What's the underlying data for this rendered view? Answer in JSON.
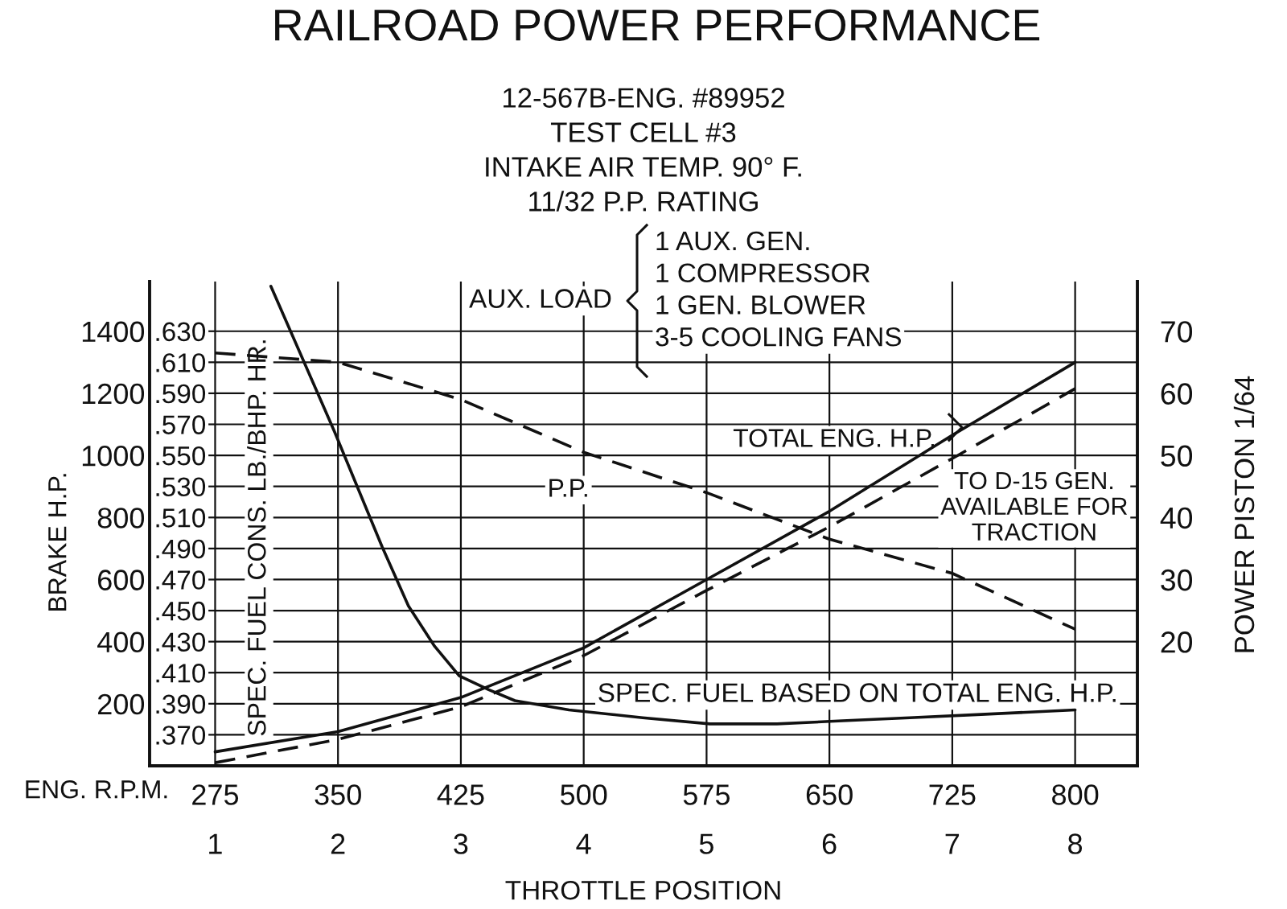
{
  "chart_data": {
    "type": "line",
    "title": "RAILROAD POWER PERFORMANCE",
    "subtitle": "12-567B-ENG. #89952\nTEST CELL #3\nINTAKE AIR TEMP. 90° F.\n11/32 P.P. RATING",
    "xlabel": "ENG. R.P.M.",
    "x2label": "THROTTLE POSITION",
    "ylabel": "BRAKE H.P.",
    "y2label": "SPEC. FUEL CONS. LB./BHP. HR.",
    "y3label": "POWER PISTON 1/64",
    "x": [
      275,
      350,
      425,
      500,
      575,
      650,
      725,
      800
    ],
    "xlim": [
      235,
      838
    ],
    "xticks": [
      275,
      350,
      425,
      500,
      575,
      650,
      725,
      800
    ],
    "x2lim": [
      0.467,
      8.507
    ],
    "x2ticks": [
      1,
      2,
      3,
      4,
      5,
      6,
      7,
      8
    ],
    "ylim": [
      0,
      1560
    ],
    "yticks": [
      200,
      400,
      600,
      800,
      1000,
      1200,
      1400
    ],
    "y2lim": [
      0.35,
      0.662
    ],
    "y2ticks": [
      {
        "value": 0.37,
        "label": ".370"
      },
      {
        "value": 0.39,
        "label": ".390"
      },
      {
        "value": 0.41,
        "label": ".410"
      },
      {
        "value": 0.43,
        "label": ".430"
      },
      {
        "value": 0.45,
        "label": ".450"
      },
      {
        "value": 0.47,
        "label": ".470"
      },
      {
        "value": 0.49,
        "label": ".490"
      },
      {
        "value": 0.51,
        "label": ".510"
      },
      {
        "value": 0.53,
        "label": ".530"
      },
      {
        "value": 0.55,
        "label": ".550"
      },
      {
        "value": 0.57,
        "label": ".570"
      },
      {
        "value": 0.59,
        "label": ".590"
      },
      {
        "value": 0.61,
        "label": ".610"
      },
      {
        "value": 0.63,
        "label": ".630"
      }
    ],
    "y3lim": [
      0,
      78
    ],
    "y3ticks": [
      20,
      30,
      40,
      50,
      60,
      70
    ],
    "grid": true,
    "series": [
      {
        "name": "TOTAL ENG. H.P.",
        "color": "#111111",
        "line_style": "solid",
        "values": [
          45,
          110,
          220,
          380,
          600,
          820,
          1065,
          1300
        ]
      },
      {
        "name": "TO D-15 GEN.\nAVAILABLE FOR\nTRACTION",
        "color": "#111111",
        "line_style": "dashed",
        "values": [
          10,
          85,
          190,
          355,
          565,
          770,
          990,
          1215
        ]
      },
      {
        "name": "P.P.",
        "color": "#111111",
        "line_style": "dashed",
        "axis": "y3",
        "values": [
          66.5,
          65,
          59,
          50.5,
          44,
          36.5,
          31,
          22
        ]
      },
      {
        "name": "SPEC. FUEL BASED ON TOTAL ENG. H.P.",
        "color": "#111111",
        "line_style": "solid",
        "axis": "y2",
        "x": [
          309,
          348,
          377,
          393,
          409,
          424,
          442,
          458,
          491,
          536,
          577,
          618,
          658,
          699,
          740,
          800
        ],
        "values": [
          0.659,
          0.565,
          0.491,
          0.453,
          0.427,
          0.408,
          0.399,
          0.392,
          0.386,
          0.381,
          0.377,
          0.377,
          0.379,
          0.381,
          0.383,
          0.386
        ]
      }
    ],
    "annotations": [
      "AUX. LOAD",
      "1 AUX. GEN.\n1 COMPRESSOR\n1 GEN. BLOWER\n3-5 COOLING FANS"
    ]
  }
}
